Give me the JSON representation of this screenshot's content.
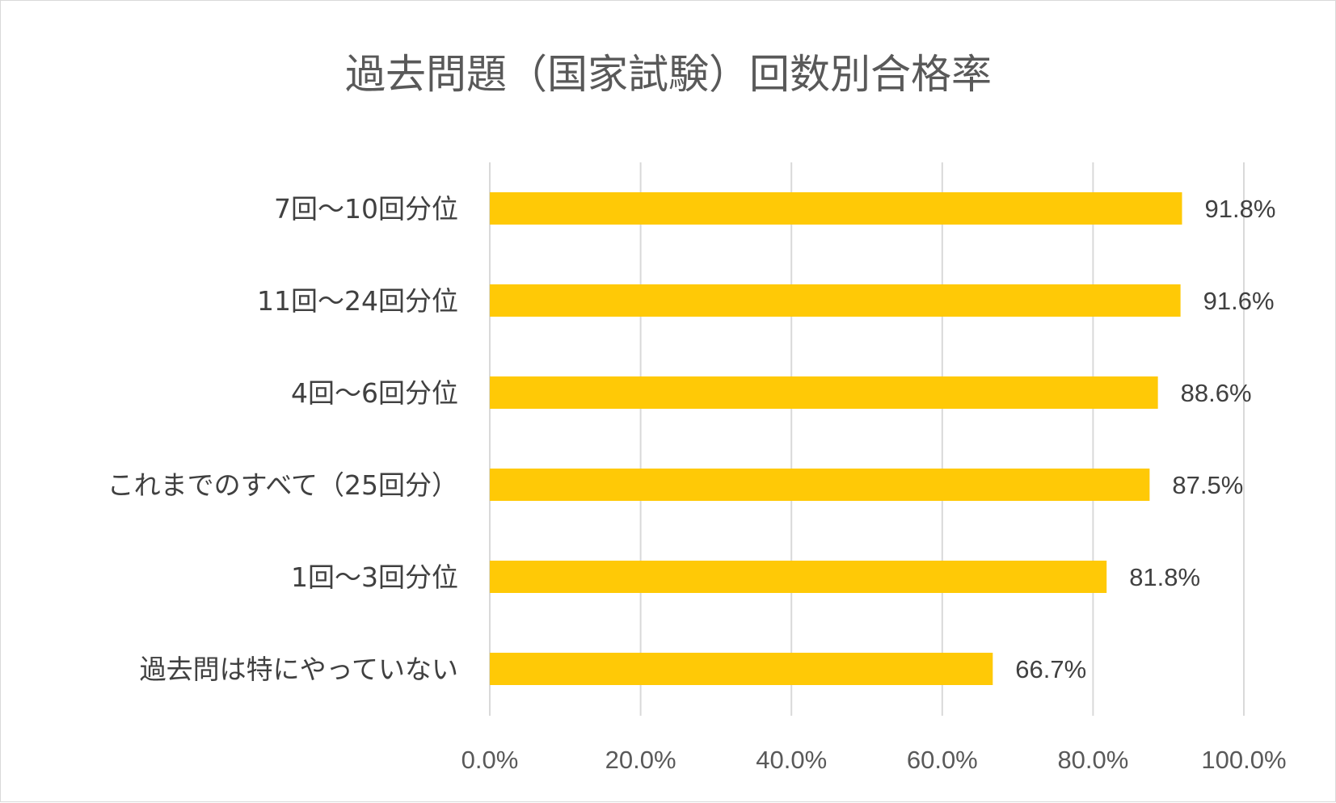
{
  "chart_data": {
    "type": "bar",
    "orientation": "horizontal",
    "title": "過去問題（国家試験）回数別合格率",
    "categories": [
      "7回～10回分位",
      "11回～24回分位",
      "4回～6回分位",
      "これまでのすべて（25回分）",
      "1回～3回分位",
      "過去問は特にやっていない"
    ],
    "values": [
      91.8,
      91.6,
      88.6,
      87.5,
      81.8,
      66.7
    ],
    "value_labels": [
      "91.8%",
      "91.6%",
      "88.6%",
      "87.5%",
      "81.8%",
      "66.7%"
    ],
    "xlim": [
      0,
      100
    ],
    "x_ticks": [
      0,
      20,
      40,
      60,
      80,
      100
    ],
    "x_tick_labels": [
      "0.0%",
      "20.0%",
      "40.0%",
      "60.0%",
      "80.0%",
      "100.0%"
    ],
    "grid": "vertical",
    "legend": "none",
    "bar_color": "#FFC906",
    "gridline_color": "#d9d9d9"
  }
}
